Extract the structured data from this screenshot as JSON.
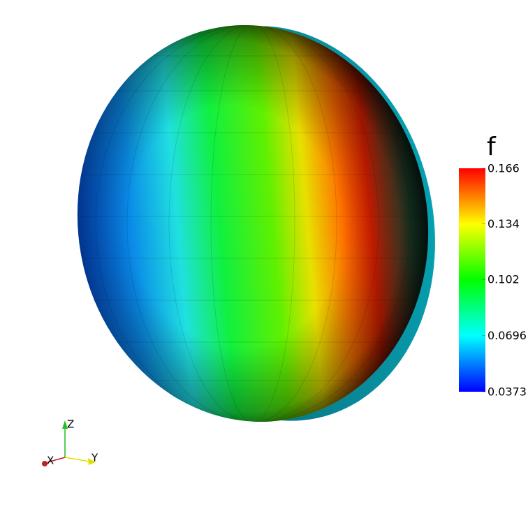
{
  "scalar_bar": {
    "title": "f",
    "range": [
      0.0373,
      0.166
    ],
    "ticks": [
      0.166,
      0.134,
      0.102,
      0.0696,
      0.0373
    ]
  },
  "axes": {
    "x": "X",
    "y": "Y",
    "z": "Z"
  }
}
